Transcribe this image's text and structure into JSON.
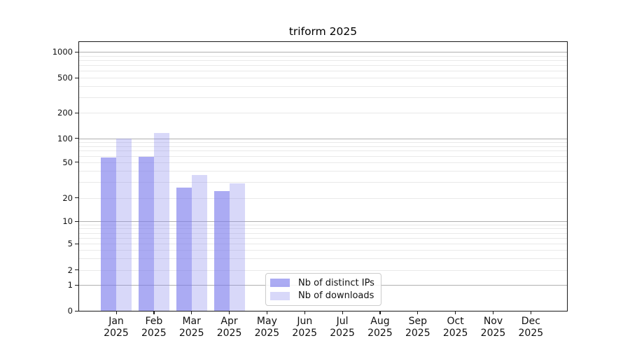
{
  "title": "triform 2025",
  "chart_data": {
    "type": "bar",
    "title": "triform 2025",
    "categories": [
      "Jan 2025",
      "Feb 2025",
      "Mar 2025",
      "Apr 2025",
      "May 2025",
      "Jun 2025",
      "Jul 2025",
      "Aug 2025",
      "Sep 2025",
      "Oct 2025",
      "Nov 2025",
      "Dec 2025"
    ],
    "series": [
      {
        "name": "Nb of distinct IPs",
        "color": "#7c7cec",
        "alpha": 0.64,
        "values": [
          57,
          59,
          26,
          24,
          null,
          null,
          null,
          null,
          null,
          null,
          null,
          null
        ]
      },
      {
        "name": "Nb of downloads",
        "color": "#8c8cee",
        "alpha": 0.34,
        "values": [
          100,
          115,
          36,
          29,
          null,
          null,
          null,
          null,
          null,
          null,
          null,
          null
        ]
      }
    ],
    "xlabel": "",
    "ylabel": "",
    "yscale": "log with zero baseline",
    "y_ticks": [
      0,
      1,
      2,
      5,
      10,
      20,
      50,
      100,
      200,
      500,
      1000
    ],
    "ylim": [
      0,
      1250
    ],
    "grid": "horizontal major (powers of 10) + minor log lines",
    "legend_position": "inside plot, bottom center-left"
  },
  "colors": {
    "major_grid": "#b0b0b0",
    "minor_grid": "#e9e9e9",
    "axis": "#1a1a1a",
    "text": "#111111",
    "legend_border": "#cccccc",
    "background": "#ffffff"
  }
}
